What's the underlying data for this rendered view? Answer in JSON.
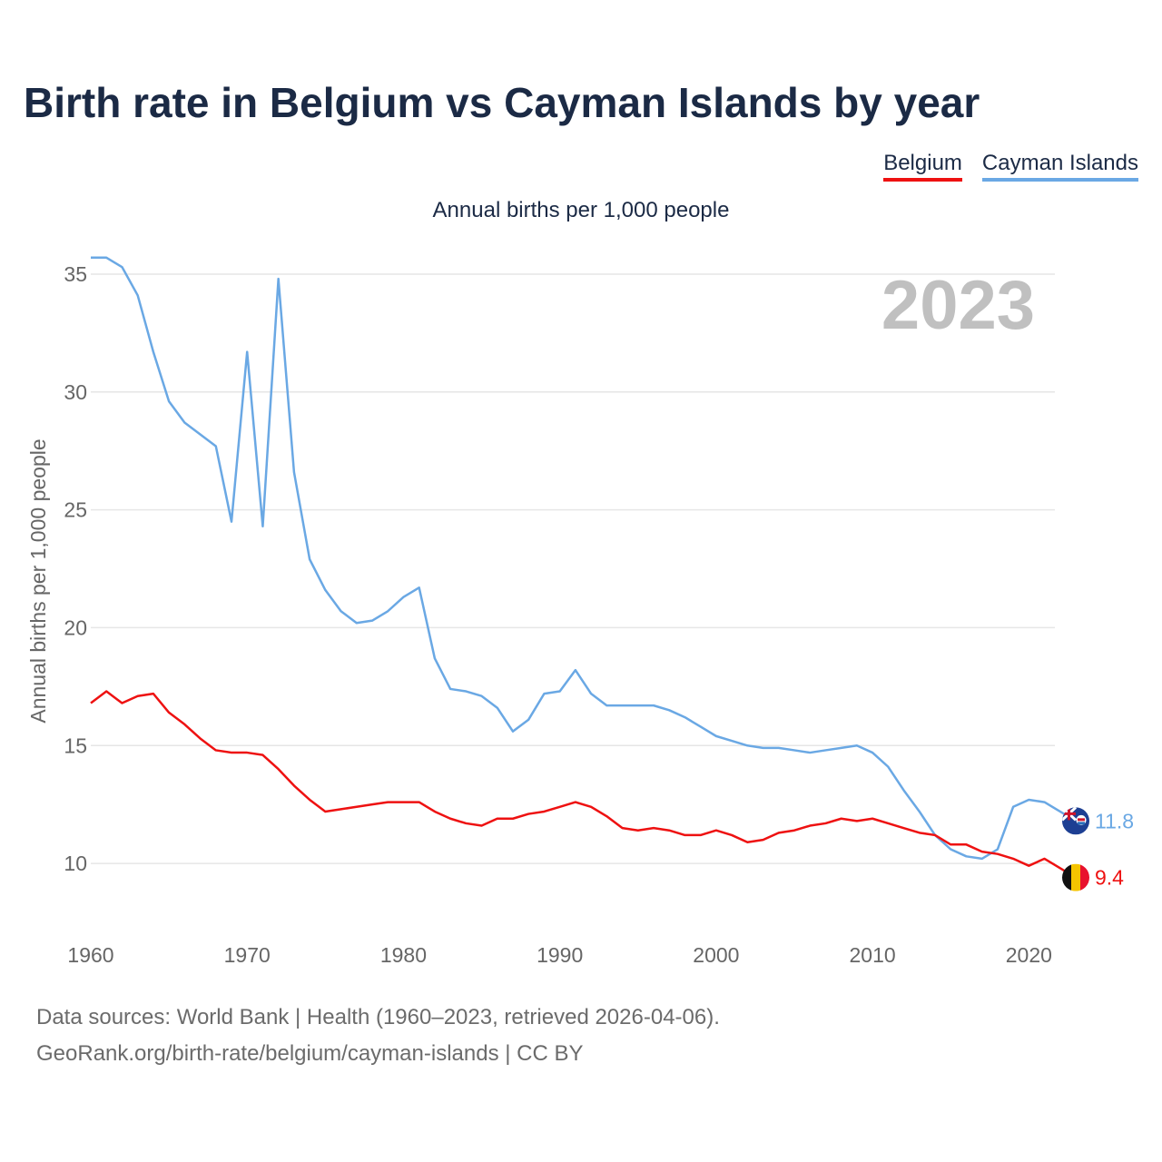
{
  "title": "Birth rate in Belgium vs Cayman Islands by year",
  "subtitle": "Annual births per 1,000 people",
  "legend": [
    "Belgium",
    "Cayman Islands"
  ],
  "colors": {
    "belgium": "#ee1111",
    "cayman": "#6aa8e4",
    "grid": "#e6e6e6",
    "axis_text": "#666666",
    "year_label": "#c0c0c0"
  },
  "year_label": "2023",
  "source": {
    "line1": "Data sources: World Bank | Health (1960–2023, retrieved 2026-04-06).",
    "line2": "GeoRank.org/birth-rate/belgium/cayman-islands | CC BY"
  },
  "chart_data": {
    "type": "line",
    "title": "Birth rate in Belgium vs Cayman Islands by year",
    "ylabel": "Annual births per 1,000 people",
    "xlabel": "",
    "xlim": [
      1960,
      2023
    ],
    "ylim": [
      7.5,
      36.5
    ],
    "xticks": [
      1960,
      1970,
      1980,
      1990,
      2000,
      2010,
      2020
    ],
    "yticks": [
      10,
      15,
      20,
      25,
      30,
      35
    ],
    "x": [
      1960,
      1961,
      1962,
      1963,
      1964,
      1965,
      1966,
      1967,
      1968,
      1969,
      1970,
      1971,
      1972,
      1973,
      1974,
      1975,
      1976,
      1977,
      1978,
      1979,
      1980,
      1981,
      1982,
      1983,
      1984,
      1985,
      1986,
      1987,
      1988,
      1989,
      1990,
      1991,
      1992,
      1993,
      1994,
      1995,
      1996,
      1997,
      1998,
      1999,
      2000,
      2001,
      2002,
      2003,
      2004,
      2005,
      2006,
      2007,
      2008,
      2009,
      2010,
      2011,
      2012,
      2013,
      2014,
      2015,
      2016,
      2017,
      2018,
      2019,
      2020,
      2021,
      2022,
      2023
    ],
    "series": [
      {
        "name": "Belgium",
        "end_label": "9.4",
        "values": [
          16.8,
          17.3,
          16.8,
          17.1,
          17.2,
          16.4,
          15.9,
          15.3,
          14.8,
          14.7,
          14.7,
          14.6,
          14.0,
          13.3,
          12.7,
          12.2,
          12.3,
          12.4,
          12.5,
          12.6,
          12.6,
          12.6,
          12.2,
          11.9,
          11.7,
          11.6,
          11.9,
          11.9,
          12.1,
          12.2,
          12.4,
          12.6,
          12.4,
          12.0,
          11.5,
          11.4,
          11.5,
          11.4,
          11.2,
          11.2,
          11.4,
          11.2,
          10.9,
          11.0,
          11.3,
          11.4,
          11.6,
          11.7,
          11.9,
          11.8,
          11.9,
          11.7,
          11.5,
          11.3,
          11.2,
          10.8,
          10.8,
          10.5,
          10.4,
          10.2,
          9.9,
          10.2,
          9.8,
          9.4
        ]
      },
      {
        "name": "Cayman Islands",
        "end_label": "11.8",
        "values": [
          35.7,
          35.7,
          35.3,
          34.1,
          31.7,
          29.6,
          28.7,
          28.2,
          27.7,
          24.5,
          31.7,
          24.3,
          34.8,
          26.6,
          22.9,
          21.6,
          20.7,
          20.2,
          20.3,
          20.7,
          21.3,
          21.7,
          18.7,
          17.4,
          17.3,
          17.1,
          16.6,
          15.6,
          16.1,
          17.2,
          17.3,
          18.2,
          17.2,
          16.7,
          16.7,
          16.7,
          16.7,
          16.5,
          16.2,
          15.8,
          15.4,
          15.2,
          15.0,
          14.9,
          14.9,
          14.8,
          14.7,
          14.8,
          14.9,
          15.0,
          14.7,
          14.1,
          13.1,
          12.2,
          11.2,
          10.6,
          10.3,
          10.2,
          10.6,
          12.4,
          12.7,
          12.6,
          12.2,
          11.8
        ]
      }
    ]
  }
}
